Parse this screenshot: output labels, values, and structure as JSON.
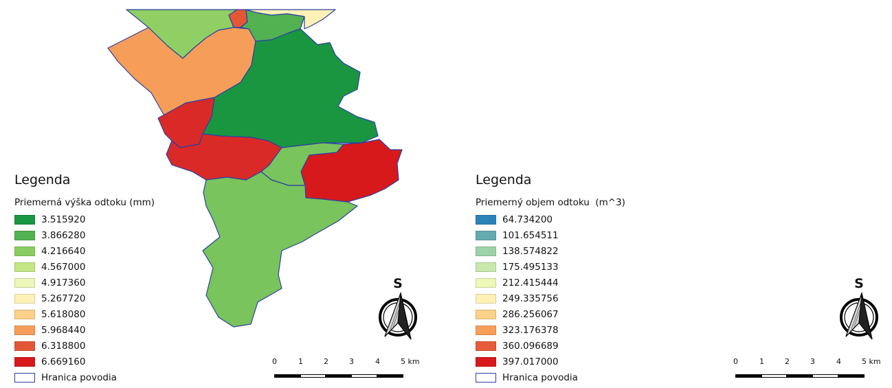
{
  "colors": {
    "boundary": "#2b3fa6",
    "green_ramp": [
      "#1a9641",
      "#52b151",
      "#8acc62",
      "#c4e687",
      "#ecf7b9",
      "#fff2b6",
      "#fed18a",
      "#f69e59",
      "#e35737",
      "#d7191c"
    ],
    "blue_ramp": [
      "#2b83ba",
      "#64abb0",
      "#9dd3a7",
      "#c7e9ad",
      "#edf8b9",
      "#fff1b4",
      "#fed18a",
      "#f99e59",
      "#e85b3a",
      "#d7191c"
    ]
  },
  "maps": [
    {
      "legend_heading": "Legenda",
      "legend_subtitle": "Priemerná výška odtoku (mm)",
      "classes": [
        {
          "label": "3.515920",
          "color": "#1a9641"
        },
        {
          "label": "3.866280",
          "color": "#52b151"
        },
        {
          "label": "4.216640",
          "color": "#8acc62"
        },
        {
          "label": "4.567000",
          "color": "#c4e687"
        },
        {
          "label": "4.917360",
          "color": "#ecf7b9"
        },
        {
          "label": "5.267720",
          "color": "#fff2b6"
        },
        {
          "label": "5.618080",
          "color": "#fed18a"
        },
        {
          "label": "5.968440",
          "color": "#f69e59"
        },
        {
          "label": "6.318800",
          "color": "#e35737"
        },
        {
          "label": "6.669160",
          "color": "#d7191c"
        }
      ],
      "boundary_label": "Hranica povodia",
      "north_letter": "S",
      "scale_labels": [
        "0",
        "1",
        "2",
        "3",
        "4",
        "5 km"
      ],
      "subbasin_colors": [
        "#8fcf64",
        "#f69e59",
        "#e35737",
        "#52b151",
        "#fff2b6",
        "#1a9641",
        "#d92a28",
        "#d92a28",
        "#79c45c",
        "#d7191c",
        "#79c45c"
      ]
    },
    {
      "legend_heading": "Legenda",
      "legend_subtitle": "Priemerný objem odtoku  (m^3)",
      "classes": [
        {
          "label": "64.734200",
          "color": "#2b83ba"
        },
        {
          "label": "101.654511",
          "color": "#64abb0"
        },
        {
          "label": "138.574822",
          "color": "#9dd3a7"
        },
        {
          "label": "175.495133",
          "color": "#c7e9ad"
        },
        {
          "label": "212.415444",
          "color": "#edf8b9"
        },
        {
          "label": "249.335756",
          "color": "#fff1b4"
        },
        {
          "label": "286.256067",
          "color": "#fed18a"
        },
        {
          "label": "323.176378",
          "color": "#f99e59"
        },
        {
          "label": "360.096689",
          "color": "#e85b3a"
        },
        {
          "label": "397.017000",
          "color": "#d7191c"
        }
      ],
      "boundary_label": "Hranica povodia",
      "north_letter": "S",
      "scale_labels": [
        "0",
        "1",
        "2",
        "3",
        "4",
        "5 km"
      ],
      "subbasin_colors": [
        "#f8efb2",
        "#f8efb2",
        "#2b83ba",
        "#bfe1b2",
        "#ecf6c2",
        "#c5e6b0",
        "#d7191c",
        "#2b83ba",
        "#91c9a9",
        "#c7e9ad",
        "#91c9a9"
      ]
    }
  ]
}
